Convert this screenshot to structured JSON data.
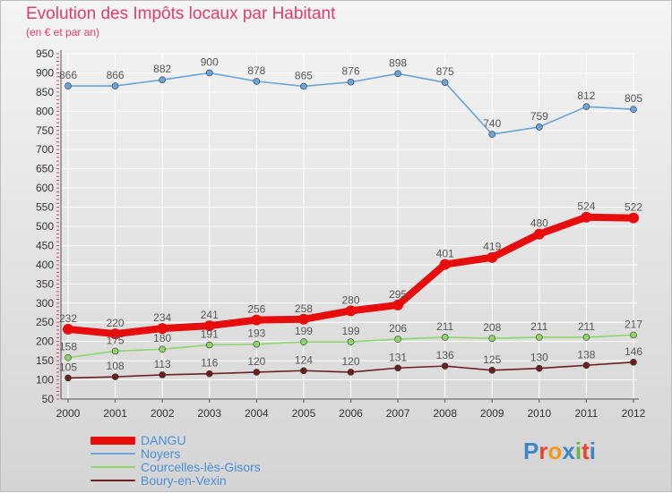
{
  "title": "Evolution des Impôts locaux par Habitant",
  "subtitle": "(en € et par an)",
  "logo": {
    "text": "Proxiti",
    "colors": [
      "#3a86c8",
      "#e8442e",
      "#f29a1f",
      "#3a86c8",
      "#6cb33f",
      "#e8442e",
      "#3a86c8"
    ]
  },
  "colors": {
    "title": "#e23c6d",
    "axis_text": "#333333",
    "value_text": "#555555",
    "legend_text": "#4a8fd6",
    "grid": "#ffffff"
  },
  "chart_data": {
    "type": "line",
    "x": [
      "2000",
      "2001",
      "2002",
      "2003",
      "2004",
      "2005",
      "2006",
      "2007",
      "2008",
      "2009",
      "2010",
      "2011",
      "2012"
    ],
    "ylim": [
      50,
      950
    ],
    "yticks": [
      50,
      100,
      150,
      200,
      250,
      300,
      350,
      400,
      450,
      500,
      550,
      600,
      650,
      700,
      750,
      800,
      850,
      900,
      950
    ],
    "grid": true,
    "legend_position": "bottom-left",
    "series": [
      {
        "name": "DANGU",
        "color": "#e80d0d",
        "emphasis": true,
        "values": [
          232,
          220,
          234,
          241,
          256,
          258,
          280,
          295,
          401,
          419,
          480,
          524,
          522
        ]
      },
      {
        "name": "Noyers",
        "color": "#6aa4d8",
        "values": [
          866,
          866,
          882,
          900,
          878,
          865,
          876,
          898,
          875,
          740,
          759,
          812,
          805
        ]
      },
      {
        "name": "Courcelles-lès-Gisors",
        "color": "#8ed66a",
        "values": [
          158,
          175,
          180,
          191,
          193,
          199,
          199,
          206,
          211,
          208,
          211,
          211,
          217
        ]
      },
      {
        "name": "Boury-en-Vexin",
        "color": "#6b1f1f",
        "values": [
          105,
          108,
          113,
          116,
          120,
          124,
          120,
          131,
          136,
          125,
          130,
          138,
          146
        ]
      }
    ]
  }
}
